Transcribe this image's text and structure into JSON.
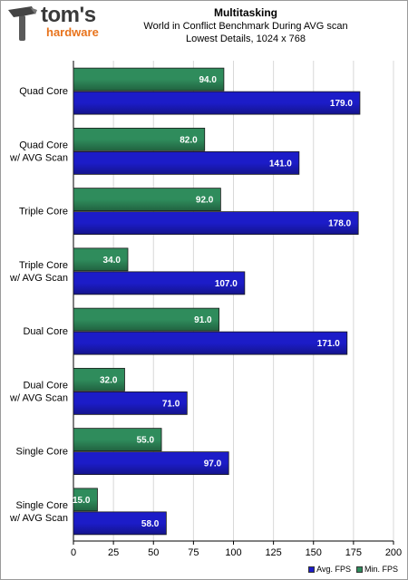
{
  "logo": {
    "name": "tom's",
    "sub": "hardware"
  },
  "chart_data": {
    "type": "bar",
    "orientation": "horizontal",
    "title": "Multitasking",
    "subtitle": [
      "World in Conflict Benchmark During AVG scan",
      "Lowest Details, 1024 x 768"
    ],
    "categories": [
      [
        "Quad Core"
      ],
      [
        "Quad Core",
        "w/ AVG Scan"
      ],
      [
        "Triple Core"
      ],
      [
        "Triple Core",
        "w/ AVG Scan"
      ],
      [
        "Dual Core"
      ],
      [
        "Dual Core",
        "w/ AVG Scan"
      ],
      [
        "Single Core"
      ],
      [
        "Single Core",
        "w/ AVG Scan"
      ]
    ],
    "series": [
      {
        "name": "Min. FPS",
        "color": "#2f8c5c",
        "values": [
          94.0,
          82.0,
          92.0,
          34.0,
          91.0,
          32.0,
          55.0,
          15.0
        ]
      },
      {
        "name": "Avg. FPS",
        "color": "#1c1cc8",
        "values": [
          179.0,
          141.0,
          178.0,
          107.0,
          171.0,
          71.0,
          97.0,
          58.0
        ]
      }
    ],
    "xlim": [
      0,
      200
    ],
    "xticks": [
      0,
      25,
      50,
      75,
      100,
      125,
      150,
      175,
      200
    ],
    "grid": true,
    "legend": "bottom-right"
  }
}
